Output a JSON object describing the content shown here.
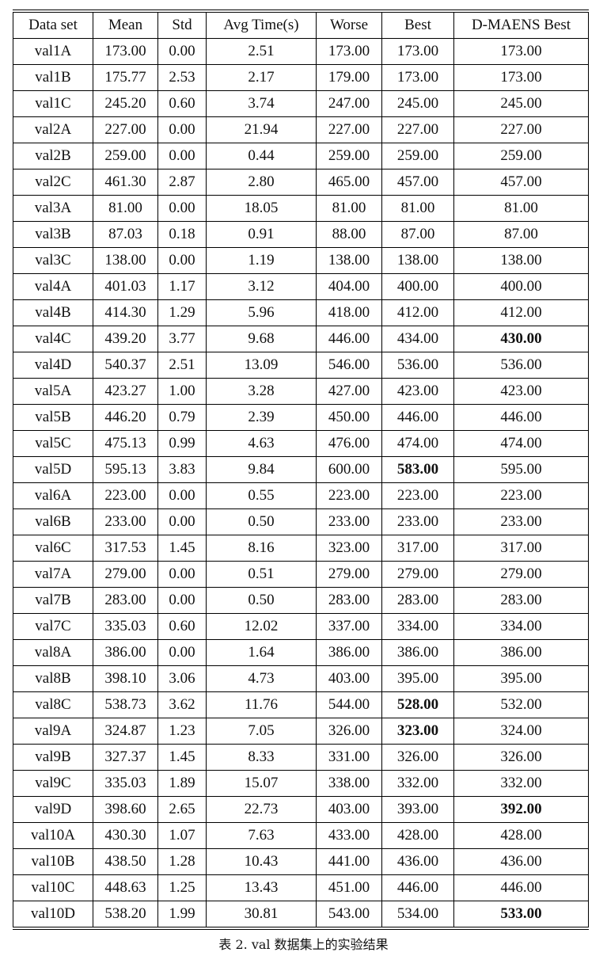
{
  "table": {
    "headers": [
      "Data set",
      "Mean",
      "Std",
      "Avg Time(s)",
      "Worse",
      "Best",
      "D-MAENS Best"
    ],
    "rows": [
      {
        "cells": [
          "val1A",
          "173.00",
          "0.00",
          "2.51",
          "173.00",
          "173.00",
          "173.00"
        ],
        "bold": []
      },
      {
        "cells": [
          "val1B",
          "175.77",
          "2.53",
          "2.17",
          "179.00",
          "173.00",
          "173.00"
        ],
        "bold": []
      },
      {
        "cells": [
          "val1C",
          "245.20",
          "0.60",
          "3.74",
          "247.00",
          "245.00",
          "245.00"
        ],
        "bold": []
      },
      {
        "cells": [
          "val2A",
          "227.00",
          "0.00",
          "21.94",
          "227.00",
          "227.00",
          "227.00"
        ],
        "bold": []
      },
      {
        "cells": [
          "val2B",
          "259.00",
          "0.00",
          "0.44",
          "259.00",
          "259.00",
          "259.00"
        ],
        "bold": []
      },
      {
        "cells": [
          "val2C",
          "461.30",
          "2.87",
          "2.80",
          "465.00",
          "457.00",
          "457.00"
        ],
        "bold": []
      },
      {
        "cells": [
          "val3A",
          "81.00",
          "0.00",
          "18.05",
          "81.00",
          "81.00",
          "81.00"
        ],
        "bold": []
      },
      {
        "cells": [
          "val3B",
          "87.03",
          "0.18",
          "0.91",
          "88.00",
          "87.00",
          "87.00"
        ],
        "bold": []
      },
      {
        "cells": [
          "val3C",
          "138.00",
          "0.00",
          "1.19",
          "138.00",
          "138.00",
          "138.00"
        ],
        "bold": []
      },
      {
        "cells": [
          "val4A",
          "401.03",
          "1.17",
          "3.12",
          "404.00",
          "400.00",
          "400.00"
        ],
        "bold": []
      },
      {
        "cells": [
          "val4B",
          "414.30",
          "1.29",
          "5.96",
          "418.00",
          "412.00",
          "412.00"
        ],
        "bold": []
      },
      {
        "cells": [
          "val4C",
          "439.20",
          "3.77",
          "9.68",
          "446.00",
          "434.00",
          "430.00"
        ],
        "bold": [
          6
        ]
      },
      {
        "cells": [
          "val4D",
          "540.37",
          "2.51",
          "13.09",
          "546.00",
          "536.00",
          "536.00"
        ],
        "bold": []
      },
      {
        "cells": [
          "val5A",
          "423.27",
          "1.00",
          "3.28",
          "427.00",
          "423.00",
          "423.00"
        ],
        "bold": []
      },
      {
        "cells": [
          "val5B",
          "446.20",
          "0.79",
          "2.39",
          "450.00",
          "446.00",
          "446.00"
        ],
        "bold": []
      },
      {
        "cells": [
          "val5C",
          "475.13",
          "0.99",
          "4.63",
          "476.00",
          "474.00",
          "474.00"
        ],
        "bold": []
      },
      {
        "cells": [
          "val5D",
          "595.13",
          "3.83",
          "9.84",
          "600.00",
          "583.00",
          "595.00"
        ],
        "bold": [
          5
        ]
      },
      {
        "cells": [
          "val6A",
          "223.00",
          "0.00",
          "0.55",
          "223.00",
          "223.00",
          "223.00"
        ],
        "bold": []
      },
      {
        "cells": [
          "val6B",
          "233.00",
          "0.00",
          "0.50",
          "233.00",
          "233.00",
          "233.00"
        ],
        "bold": []
      },
      {
        "cells": [
          "val6C",
          "317.53",
          "1.45",
          "8.16",
          "323.00",
          "317.00",
          "317.00"
        ],
        "bold": []
      },
      {
        "cells": [
          "val7A",
          "279.00",
          "0.00",
          "0.51",
          "279.00",
          "279.00",
          "279.00"
        ],
        "bold": []
      },
      {
        "cells": [
          "val7B",
          "283.00",
          "0.00",
          "0.50",
          "283.00",
          "283.00",
          "283.00"
        ],
        "bold": []
      },
      {
        "cells": [
          "val7C",
          "335.03",
          "0.60",
          "12.02",
          "337.00",
          "334.00",
          "334.00"
        ],
        "bold": []
      },
      {
        "cells": [
          "val8A",
          "386.00",
          "0.00",
          "1.64",
          "386.00",
          "386.00",
          "386.00"
        ],
        "bold": []
      },
      {
        "cells": [
          "val8B",
          "398.10",
          "3.06",
          "4.73",
          "403.00",
          "395.00",
          "395.00"
        ],
        "bold": []
      },
      {
        "cells": [
          "val8C",
          "538.73",
          "3.62",
          "11.76",
          "544.00",
          "528.00",
          "532.00"
        ],
        "bold": [
          5
        ]
      },
      {
        "cells": [
          "val9A",
          "324.87",
          "1.23",
          "7.05",
          "326.00",
          "323.00",
          "324.00"
        ],
        "bold": [
          5
        ]
      },
      {
        "cells": [
          "val9B",
          "327.37",
          "1.45",
          "8.33",
          "331.00",
          "326.00",
          "326.00"
        ],
        "bold": []
      },
      {
        "cells": [
          "val9C",
          "335.03",
          "1.89",
          "15.07",
          "338.00",
          "332.00",
          "332.00"
        ],
        "bold": []
      },
      {
        "cells": [
          "val9D",
          "398.60",
          "2.65",
          "22.73",
          "403.00",
          "393.00",
          "392.00"
        ],
        "bold": [
          6
        ]
      },
      {
        "cells": [
          "val10A",
          "430.30",
          "1.07",
          "7.63",
          "433.00",
          "428.00",
          "428.00"
        ],
        "bold": []
      },
      {
        "cells": [
          "val10B",
          "438.50",
          "1.28",
          "10.43",
          "441.00",
          "436.00",
          "436.00"
        ],
        "bold": []
      },
      {
        "cells": [
          "val10C",
          "448.63",
          "1.25",
          "13.43",
          "451.00",
          "446.00",
          "446.00"
        ],
        "bold": []
      },
      {
        "cells": [
          "val10D",
          "538.20",
          "1.99",
          "30.81",
          "543.00",
          "534.00",
          "533.00"
        ],
        "bold": [
          6
        ]
      }
    ]
  },
  "caption": "表 2. val 数据集上的实验结果"
}
